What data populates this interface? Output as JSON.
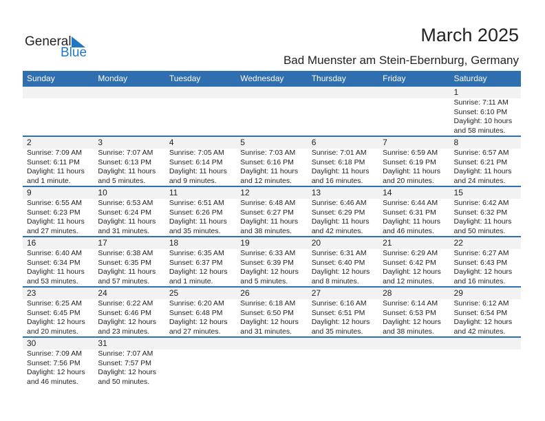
{
  "logo": {
    "text_general": "General",
    "text_blue": "Blue"
  },
  "header": {
    "title": "March 2025",
    "subtitle": "Bad Muenster am Stein-Ebernburg, Germany"
  },
  "colors": {
    "accent": "#2f6fb0",
    "band": "#f2f2f2",
    "logo_blue": "#1f78c1"
  },
  "weekdays": [
    "Sunday",
    "Monday",
    "Tuesday",
    "Wednesday",
    "Thursday",
    "Friday",
    "Saturday"
  ],
  "weeks": [
    [
      null,
      null,
      null,
      null,
      null,
      null,
      {
        "day": "1",
        "sunrise": "Sunrise: 7:11 AM",
        "sunset": "Sunset: 6:10 PM",
        "daylight": "Daylight: 10 hours",
        "minutes": "and 58 minutes."
      }
    ],
    [
      {
        "day": "2",
        "sunrise": "Sunrise: 7:09 AM",
        "sunset": "Sunset: 6:11 PM",
        "daylight": "Daylight: 11 hours",
        "minutes": "and 1 minute."
      },
      {
        "day": "3",
        "sunrise": "Sunrise: 7:07 AM",
        "sunset": "Sunset: 6:13 PM",
        "daylight": "Daylight: 11 hours",
        "minutes": "and 5 minutes."
      },
      {
        "day": "4",
        "sunrise": "Sunrise: 7:05 AM",
        "sunset": "Sunset: 6:14 PM",
        "daylight": "Daylight: 11 hours",
        "minutes": "and 9 minutes."
      },
      {
        "day": "5",
        "sunrise": "Sunrise: 7:03 AM",
        "sunset": "Sunset: 6:16 PM",
        "daylight": "Daylight: 11 hours",
        "minutes": "and 12 minutes."
      },
      {
        "day": "6",
        "sunrise": "Sunrise: 7:01 AM",
        "sunset": "Sunset: 6:18 PM",
        "daylight": "Daylight: 11 hours",
        "minutes": "and 16 minutes."
      },
      {
        "day": "7",
        "sunrise": "Sunrise: 6:59 AM",
        "sunset": "Sunset: 6:19 PM",
        "daylight": "Daylight: 11 hours",
        "minutes": "and 20 minutes."
      },
      {
        "day": "8",
        "sunrise": "Sunrise: 6:57 AM",
        "sunset": "Sunset: 6:21 PM",
        "daylight": "Daylight: 11 hours",
        "minutes": "and 24 minutes."
      }
    ],
    [
      {
        "day": "9",
        "sunrise": "Sunrise: 6:55 AM",
        "sunset": "Sunset: 6:23 PM",
        "daylight": "Daylight: 11 hours",
        "minutes": "and 27 minutes."
      },
      {
        "day": "10",
        "sunrise": "Sunrise: 6:53 AM",
        "sunset": "Sunset: 6:24 PM",
        "daylight": "Daylight: 11 hours",
        "minutes": "and 31 minutes."
      },
      {
        "day": "11",
        "sunrise": "Sunrise: 6:51 AM",
        "sunset": "Sunset: 6:26 PM",
        "daylight": "Daylight: 11 hours",
        "minutes": "and 35 minutes."
      },
      {
        "day": "12",
        "sunrise": "Sunrise: 6:48 AM",
        "sunset": "Sunset: 6:27 PM",
        "daylight": "Daylight: 11 hours",
        "minutes": "and 38 minutes."
      },
      {
        "day": "13",
        "sunrise": "Sunrise: 6:46 AM",
        "sunset": "Sunset: 6:29 PM",
        "daylight": "Daylight: 11 hours",
        "minutes": "and 42 minutes."
      },
      {
        "day": "14",
        "sunrise": "Sunrise: 6:44 AM",
        "sunset": "Sunset: 6:31 PM",
        "daylight": "Daylight: 11 hours",
        "minutes": "and 46 minutes."
      },
      {
        "day": "15",
        "sunrise": "Sunrise: 6:42 AM",
        "sunset": "Sunset: 6:32 PM",
        "daylight": "Daylight: 11 hours",
        "minutes": "and 50 minutes."
      }
    ],
    [
      {
        "day": "16",
        "sunrise": "Sunrise: 6:40 AM",
        "sunset": "Sunset: 6:34 PM",
        "daylight": "Daylight: 11 hours",
        "minutes": "and 53 minutes."
      },
      {
        "day": "17",
        "sunrise": "Sunrise: 6:38 AM",
        "sunset": "Sunset: 6:35 PM",
        "daylight": "Daylight: 11 hours",
        "minutes": "and 57 minutes."
      },
      {
        "day": "18",
        "sunrise": "Sunrise: 6:35 AM",
        "sunset": "Sunset: 6:37 PM",
        "daylight": "Daylight: 12 hours",
        "minutes": "and 1 minute."
      },
      {
        "day": "19",
        "sunrise": "Sunrise: 6:33 AM",
        "sunset": "Sunset: 6:39 PM",
        "daylight": "Daylight: 12 hours",
        "minutes": "and 5 minutes."
      },
      {
        "day": "20",
        "sunrise": "Sunrise: 6:31 AM",
        "sunset": "Sunset: 6:40 PM",
        "daylight": "Daylight: 12 hours",
        "minutes": "and 8 minutes."
      },
      {
        "day": "21",
        "sunrise": "Sunrise: 6:29 AM",
        "sunset": "Sunset: 6:42 PM",
        "daylight": "Daylight: 12 hours",
        "minutes": "and 12 minutes."
      },
      {
        "day": "22",
        "sunrise": "Sunrise: 6:27 AM",
        "sunset": "Sunset: 6:43 PM",
        "daylight": "Daylight: 12 hours",
        "minutes": "and 16 minutes."
      }
    ],
    [
      {
        "day": "23",
        "sunrise": "Sunrise: 6:25 AM",
        "sunset": "Sunset: 6:45 PM",
        "daylight": "Daylight: 12 hours",
        "minutes": "and 20 minutes."
      },
      {
        "day": "24",
        "sunrise": "Sunrise: 6:22 AM",
        "sunset": "Sunset: 6:46 PM",
        "daylight": "Daylight: 12 hours",
        "minutes": "and 23 minutes."
      },
      {
        "day": "25",
        "sunrise": "Sunrise: 6:20 AM",
        "sunset": "Sunset: 6:48 PM",
        "daylight": "Daylight: 12 hours",
        "minutes": "and 27 minutes."
      },
      {
        "day": "26",
        "sunrise": "Sunrise: 6:18 AM",
        "sunset": "Sunset: 6:50 PM",
        "daylight": "Daylight: 12 hours",
        "minutes": "and 31 minutes."
      },
      {
        "day": "27",
        "sunrise": "Sunrise: 6:16 AM",
        "sunset": "Sunset: 6:51 PM",
        "daylight": "Daylight: 12 hours",
        "minutes": "and 35 minutes."
      },
      {
        "day": "28",
        "sunrise": "Sunrise: 6:14 AM",
        "sunset": "Sunset: 6:53 PM",
        "daylight": "Daylight: 12 hours",
        "minutes": "and 38 minutes."
      },
      {
        "day": "29",
        "sunrise": "Sunrise: 6:12 AM",
        "sunset": "Sunset: 6:54 PM",
        "daylight": "Daylight: 12 hours",
        "minutes": "and 42 minutes."
      }
    ],
    [
      {
        "day": "30",
        "sunrise": "Sunrise: 7:09 AM",
        "sunset": "Sunset: 7:56 PM",
        "daylight": "Daylight: 12 hours",
        "minutes": "and 46 minutes."
      },
      {
        "day": "31",
        "sunrise": "Sunrise: 7:07 AM",
        "sunset": "Sunset: 7:57 PM",
        "daylight": "Daylight: 12 hours",
        "minutes": "and 50 minutes."
      },
      null,
      null,
      null,
      null,
      null
    ]
  ]
}
